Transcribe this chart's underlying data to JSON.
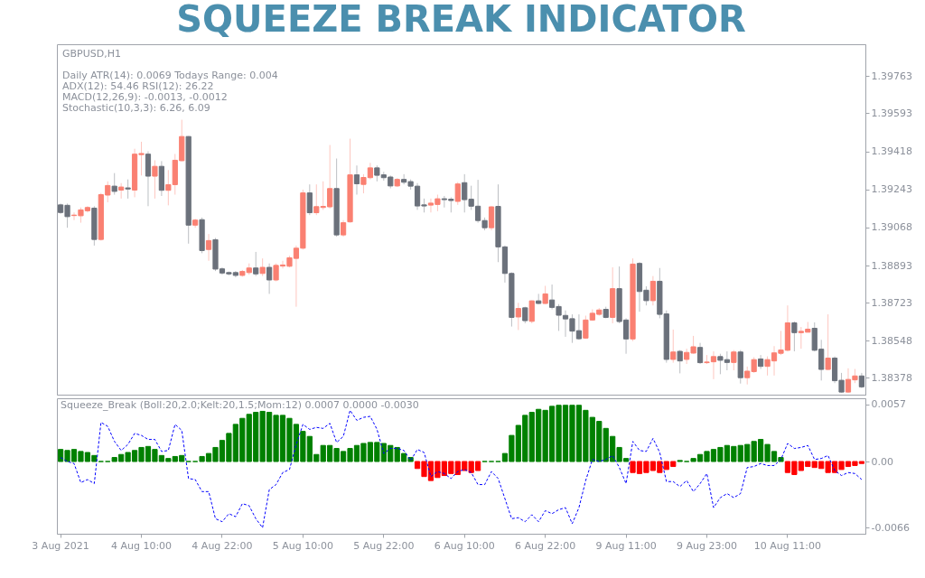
{
  "chart_data": [
    {
      "type": "candlestick",
      "title": "SQUEEZE BREAK INDICATOR",
      "categories": [
        null,
        null,
        null,
        null,
        null,
        null,
        null,
        null,
        null,
        null,
        null,
        null,
        null,
        null,
        null,
        null,
        null,
        null,
        null,
        null,
        null,
        null,
        null,
        null,
        null,
        null,
        null,
        null,
        null,
        null,
        null,
        null,
        null,
        null,
        null,
        null,
        null,
        null,
        null,
        null,
        null,
        null,
        null,
        null,
        null,
        null,
        null,
        null,
        null,
        null,
        null,
        null,
        null,
        null,
        null,
        null,
        null,
        null,
        null,
        null,
        null,
        null,
        null,
        null,
        null,
        null,
        null,
        null,
        null,
        null,
        null,
        null,
        null,
        null,
        null,
        null,
        null,
        null,
        null,
        null,
        null,
        null,
        null,
        null,
        null,
        null,
        null,
        null,
        null,
        null,
        null,
        null,
        null,
        null,
        null,
        null,
        null,
        null,
        null,
        null,
        null,
        null,
        null,
        null,
        null,
        null,
        null,
        null,
        null,
        null,
        null,
        null,
        null,
        null,
        null,
        null,
        null,
        null,
        null,
        null
      ],
      "ohlc": [
        [
          1.39172,
          1.39178,
          1.39131,
          1.39137
        ],
        [
          1.3917,
          1.39178,
          1.39067,
          1.39118
        ],
        [
          1.39123,
          1.39137,
          1.39102,
          1.39125
        ],
        [
          1.39122,
          1.3916,
          1.3909,
          1.39149
        ],
        [
          1.39145,
          1.39166,
          1.39137,
          1.3916
        ],
        [
          1.39157,
          1.39166,
          1.38985,
          1.39013
        ],
        [
          1.39013,
          1.39227,
          1.39008,
          1.39219
        ],
        [
          1.39217,
          1.3928,
          1.39184,
          1.39261
        ],
        [
          1.39258,
          1.39318,
          1.39219,
          1.39234
        ],
        [
          1.3924,
          1.39272,
          1.39201,
          1.39254
        ],
        [
          1.3925,
          1.39289,
          1.39201,
          1.39245
        ],
        [
          1.3924,
          1.3943,
          1.39207,
          1.39405
        ],
        [
          1.39403,
          1.39462,
          1.39307,
          1.39408
        ],
        [
          1.39405,
          1.39418,
          1.39166,
          1.39304
        ],
        [
          1.39304,
          1.39377,
          1.39201,
          1.39349
        ],
        [
          1.39349,
          1.39373,
          1.39213,
          1.39239
        ],
        [
          1.39239,
          1.39332,
          1.3917,
          1.39265
        ],
        [
          1.39265,
          1.39406,
          1.39219,
          1.39377
        ],
        [
          1.39375,
          1.39563,
          1.39372,
          1.39486
        ],
        [
          1.39486,
          1.39488,
          1.38994,
          1.39079
        ],
        [
          1.39079,
          1.39108,
          1.39067,
          1.39102
        ],
        [
          1.39104,
          1.39114,
          1.3895,
          1.38962
        ],
        [
          1.38967,
          1.39038,
          1.38915,
          1.39008
        ],
        [
          1.39012,
          1.3902,
          1.38868,
          1.38877
        ],
        [
          1.38878,
          1.38885,
          1.38851,
          1.38859
        ],
        [
          1.38861,
          1.38866,
          1.38848,
          1.38855
        ],
        [
          1.38861,
          1.38868,
          1.38839,
          1.38848
        ],
        [
          1.38848,
          1.38873,
          1.38842,
          1.38866
        ],
        [
          1.38861,
          1.38903,
          1.38851,
          1.38882
        ],
        [
          1.38882,
          1.38956,
          1.38845,
          1.38855
        ],
        [
          1.38857,
          1.38926,
          1.38845,
          1.38885
        ],
        [
          1.38885,
          1.38903,
          1.38763,
          1.38827
        ],
        [
          1.38827,
          1.38903,
          1.38821,
          1.38894
        ],
        [
          1.38891,
          1.38915,
          1.3888,
          1.38896
        ],
        [
          1.3889,
          1.38938,
          1.38885,
          1.38929
        ],
        [
          1.38926,
          1.38985,
          1.38704,
          1.38973
        ],
        [
          1.38973,
          1.39242,
          1.38967,
          1.39227
        ],
        [
          1.39227,
          1.39266,
          1.39125,
          1.39136
        ],
        [
          1.39136,
          1.39266,
          1.39125,
          1.39164
        ],
        [
          1.3916,
          1.3928,
          1.39149,
          1.39165
        ],
        [
          1.39163,
          1.39447,
          1.39155,
          1.39247
        ],
        [
          1.39247,
          1.39385,
          1.39026,
          1.39034
        ],
        [
          1.39034,
          1.39102,
          1.39026,
          1.3909
        ],
        [
          1.39094,
          1.39476,
          1.3909,
          1.3931
        ],
        [
          1.3931,
          1.39353,
          1.39219,
          1.39269
        ],
        [
          1.39266,
          1.39313,
          1.39225,
          1.39298
        ],
        [
          1.39297,
          1.39365,
          1.39289,
          1.39342
        ],
        [
          1.39342,
          1.39353,
          1.3928,
          1.39308
        ],
        [
          1.3931,
          1.39324,
          1.39283,
          1.39297
        ],
        [
          1.393,
          1.39307,
          1.39248,
          1.39259
        ],
        [
          1.39259,
          1.39295,
          1.39254,
          1.39289
        ],
        [
          1.39289,
          1.39313,
          1.39266,
          1.39276
        ],
        [
          1.39279,
          1.39289,
          1.39242,
          1.39258
        ],
        [
          1.39258,
          1.39272,
          1.39149,
          1.39167
        ],
        [
          1.39172,
          1.39201,
          1.39137,
          1.39167
        ],
        [
          1.39171,
          1.39201,
          1.39137,
          1.3918
        ],
        [
          1.39174,
          1.39219,
          1.39143,
          1.392
        ],
        [
          1.392,
          1.39213,
          1.3916,
          1.39196
        ],
        [
          1.39198,
          1.39207,
          1.39137,
          1.39192
        ],
        [
          1.39188,
          1.39277,
          1.39172,
          1.39268
        ],
        [
          1.39274,
          1.39313,
          1.39137,
          1.39196
        ],
        [
          1.39198,
          1.3926,
          1.39149,
          1.39166
        ],
        [
          1.39166,
          1.39287,
          1.3909,
          1.391
        ],
        [
          1.391,
          1.39114,
          1.39055,
          1.39067
        ],
        [
          1.39067,
          1.39166,
          1.39055,
          1.39163
        ],
        [
          1.39165,
          1.39266,
          1.38909,
          1.38979
        ],
        [
          1.38979,
          1.38985,
          1.38815,
          1.38857
        ],
        [
          1.38857,
          1.38862,
          1.38613,
          1.38655
        ],
        [
          1.38657,
          1.38722,
          1.38597,
          1.38696
        ],
        [
          1.38699,
          1.38704,
          1.38628,
          1.3864
        ],
        [
          1.38637,
          1.38733,
          1.38628,
          1.38731
        ],
        [
          1.38731,
          1.38763,
          1.38716,
          1.38719
        ],
        [
          1.38719,
          1.388,
          1.38716,
          1.38763
        ],
        [
          1.38735,
          1.38806,
          1.38692,
          1.38701
        ],
        [
          1.38705,
          1.38716,
          1.38593,
          1.38665
        ],
        [
          1.38664,
          1.38687,
          1.38566,
          1.38648
        ],
        [
          1.38649,
          1.38669,
          1.38538,
          1.38592
        ],
        [
          1.38594,
          1.38669,
          1.38552,
          1.38557
        ],
        [
          1.3856,
          1.38663,
          1.38556,
          1.38643
        ],
        [
          1.38643,
          1.38692,
          1.3864,
          1.38674
        ],
        [
          1.38669,
          1.38698,
          1.38663,
          1.38689
        ],
        [
          1.38692,
          1.38704,
          1.38651,
          1.38655
        ],
        [
          1.38655,
          1.38885,
          1.38628,
          1.38787
        ],
        [
          1.38787,
          1.38889,
          1.38628,
          1.38636
        ],
        [
          1.38643,
          1.38651,
          1.38488,
          1.38556
        ],
        [
          1.38556,
          1.38926,
          1.38546,
          1.389
        ],
        [
          1.38903,
          1.38909,
          1.38681,
          1.38774
        ],
        [
          1.3878,
          1.38798,
          1.3871,
          1.38732
        ],
        [
          1.38732,
          1.38845,
          1.3871,
          1.38821
        ],
        [
          1.38821,
          1.38882,
          1.38651,
          1.38669
        ],
        [
          1.38671,
          1.38687,
          1.38447,
          1.38462
        ],
        [
          1.38462,
          1.38599,
          1.38447,
          1.38496
        ],
        [
          1.38499,
          1.38505,
          1.38398,
          1.38455
        ],
        [
          1.38462,
          1.38511,
          1.38441,
          1.38494
        ],
        [
          1.38491,
          1.3857,
          1.38488,
          1.3852
        ],
        [
          1.38517,
          1.38538,
          1.38441,
          1.38447
        ],
        [
          1.38447,
          1.38482,
          1.38441,
          1.3845
        ],
        [
          1.38451,
          1.38499,
          1.38371,
          1.38475
        ],
        [
          1.38475,
          1.38488,
          1.38394,
          1.38458
        ],
        [
          1.38461,
          1.38499,
          1.38412,
          1.38448
        ],
        [
          1.38448,
          1.38505,
          1.38412,
          1.38496
        ],
        [
          1.38496,
          1.38505,
          1.38351,
          1.38378
        ],
        [
          1.38378,
          1.38429,
          1.38347,
          1.38408
        ],
        [
          1.38406,
          1.38472,
          1.384,
          1.38461
        ],
        [
          1.38464,
          1.38482,
          1.38418,
          1.3843
        ],
        [
          1.3843,
          1.38476,
          1.38388,
          1.38461
        ],
        [
          1.38455,
          1.38523,
          1.38388,
          1.38492
        ],
        [
          1.3849,
          1.38593,
          1.38482,
          1.38505
        ],
        [
          1.38504,
          1.3871,
          1.38499,
          1.3863
        ],
        [
          1.3863,
          1.38636,
          1.38499,
          1.38585
        ],
        [
          1.38585,
          1.38611,
          1.38511,
          1.38591
        ],
        [
          1.38587,
          1.38634,
          1.38587,
          1.38601
        ],
        [
          1.38605,
          1.38632,
          1.38499,
          1.38504
        ],
        [
          1.38509,
          1.38552,
          1.38365,
          1.38416
        ],
        [
          1.38416,
          1.38669,
          1.38412,
          1.38468
        ],
        [
          1.38468,
          1.38476,
          1.38353,
          1.38364
        ],
        [
          1.38366,
          1.384,
          1.38309,
          1.38312
        ],
        [
          1.38312,
          1.38421,
          1.38309,
          1.3837
        ],
        [
          1.38368,
          1.38418,
          1.38353,
          1.38386
        ],
        [
          1.38386,
          1.384,
          1.3833,
          1.38336
        ]
      ],
      "colors": [
        "#6b717b",
        "#6b717b",
        "#fa8072",
        "#fa8072",
        "#fa8072",
        "#6b717b",
        "#fa8072",
        "#fa8072",
        "#6b717b",
        "#fa8072",
        "#6b717b",
        "#fa8072",
        "#fa8072",
        "#6b717b",
        "#fa8072",
        "#6b717b",
        "#fa8072",
        "#fa8072",
        "#fa8072",
        "#6b717b",
        "#fa8072",
        "#6b717b",
        "#fa8072",
        "#6b717b",
        "#6b717b",
        "#6b717b",
        "#6b717b",
        "#fa8072",
        "#fa8072",
        "#6b717b",
        "#fa8072",
        "#6b717b",
        "#fa8072",
        "#fa8072",
        "#fa8072",
        "#fa8072",
        "#fa8072",
        "#6b717b",
        "#fa8072",
        "#fa8072",
        "#fa8072",
        "#6b717b",
        "#fa8072",
        "#fa8072",
        "#6b717b",
        "#fa8072",
        "#fa8072",
        "#6b717b",
        "#6b717b",
        "#6b717b",
        "#fa8072",
        "#6b717b",
        "#6b717b",
        "#6b717b",
        "#6b717b",
        "#fa8072",
        "#fa8072",
        "#6b717b",
        "#6b717b",
        "#fa8072",
        "#6b717b",
        "#6b717b",
        "#6b717b",
        "#6b717b",
        "#fa8072",
        "#6b717b",
        "#6b717b",
        "#6b717b",
        "#fa8072",
        "#6b717b",
        "#fa8072",
        "#6b717b",
        "#fa8072",
        "#6b717b",
        "#6b717b",
        "#6b717b",
        "#6b717b",
        "#6b717b",
        "#fa8072",
        "#fa8072",
        "#fa8072",
        "#6b717b",
        "#fa8072",
        "#6b717b",
        "#6b717b",
        "#fa8072",
        "#6b717b",
        "#6b717b",
        "#fa8072",
        "#6b717b",
        "#6b717b",
        "#fa8072",
        "#6b717b",
        "#fa8072",
        "#fa8072",
        "#6b717b",
        "#fa8072",
        "#fa8072",
        "#6b717b",
        "#6b717b",
        "#fa8072",
        "#6b717b",
        "#fa8072",
        "#fa8072",
        "#6b717b",
        "#fa8072",
        "#fa8072",
        "#fa8072",
        "#fa8072",
        "#6b717b",
        "#fa8072",
        "#fa8072",
        "#6b717b",
        "#6b717b",
        "#fa8072",
        "#6b717b",
        "#6b717b",
        "#fa8072",
        "#fa8072",
        "#6b717b"
      ],
      "ylim": [
        1.383,
        1.3991
      ],
      "yticks": [
        1.38378,
        1.38548,
        1.38723,
        1.38893,
        1.39068,
        1.39243,
        1.39418,
        1.39593,
        1.39763
      ],
      "tick_labels": "y",
      "annotations": [
        "GBPUSD,H1",
        "Daily ATR(14): 0.0069 Todays Range: 0.004",
        "ADX(12): 54.46 RSI(12): 26.22",
        "MACD(12,26,9): -0.0013, -0.0012",
        "Stochastic(10,3,3): 6.26, 6.09"
      ]
    },
    {
      "type": "bar",
      "title": "Squeeze_Break (Boll:20,2.0;Kelt:20,1.5;Mom:12) 0.0007 0.0000 -0.0030",
      "categories": [
        "3 Aug 2021",
        null,
        null,
        null,
        null,
        null,
        null,
        null,
        null,
        null,
        null,
        null,
        "4 Aug 10:00",
        null,
        null,
        null,
        null,
        null,
        null,
        null,
        null,
        null,
        null,
        null,
        "4 Aug 22:00",
        null,
        null,
        null,
        null,
        null,
        null,
        null,
        null,
        null,
        null,
        null,
        "5 Aug 10:00",
        null,
        null,
        null,
        null,
        null,
        null,
        null,
        null,
        null,
        null,
        null,
        "5 Aug 22:00",
        null,
        null,
        null,
        null,
        null,
        null,
        null,
        null,
        null,
        null,
        null,
        "6 Aug 10:00",
        null,
        null,
        null,
        null,
        null,
        null,
        null,
        null,
        null,
        null,
        null,
        "6 Aug 22:00",
        null,
        null,
        null,
        null,
        null,
        null,
        null,
        null,
        null,
        null,
        null,
        "9 Aug 11:00",
        null,
        null,
        null,
        null,
        null,
        null,
        null,
        null,
        null,
        null,
        null,
        "9 Aug 23:00",
        null,
        null,
        null,
        null,
        null,
        null,
        null,
        null,
        null,
        null,
        null,
        "10 Aug 11:00",
        null,
        null,
        null,
        null,
        null,
        null,
        null,
        null,
        null,
        null,
        null
      ],
      "series": [
        {
          "color": "#008000",
          "values": [
            0.0012,
            0.0011,
            0.0012,
            0.001,
            0.0009,
            0.0006,
            0,
            0,
            0.0004,
            0.0007,
            0.0009,
            0.0011,
            0.0014,
            0.0015,
            0.0012,
            0.0006,
            0.0003,
            0.0005,
            0.0006,
            0,
            0,
            0.0005,
            0.0008,
            0.0014,
            0.0021,
            0.0028,
            0.0037,
            0.0043,
            0.0047,
            0.0049,
            0.005,
            0.0049,
            0.0046,
            0.0046,
            0.0043,
            0.0037,
            0.003,
            0.0025,
            0.0007,
            0.0016,
            0.0016,
            0.0013,
            0.001,
            0.0013,
            0.0016,
            0.0018,
            0.0019,
            0.0019,
            0.0018,
            0.0016,
            0.0014,
            0.0008,
            0.0004,
            null,
            null,
            null,
            null,
            null,
            null,
            null,
            null,
            null,
            null,
            0,
            0,
            0,
            0.0008,
            0.0026,
            0.0036,
            0.0046,
            0.0049,
            0.0052,
            0.0051,
            0.0055,
            0.0056,
            0.0056,
            0.0056,
            0.0056,
            0.0051,
            0.0044,
            0.004,
            0.0033,
            0.0025,
            0.0014,
            0.0003,
            null,
            null,
            null,
            null,
            null,
            null,
            null,
            0.0001,
            0,
            0.0003,
            0.0007,
            0.001,
            0.0012,
            0.0014,
            0.0016,
            0.0015,
            0.0016,
            0.0017,
            0.002,
            0.0022,
            0.0017,
            0.001,
            0.0004,
            null,
            null,
            null,
            null,
            null,
            null,
            null,
            null,
            null,
            null,
            null,
            null
          ]
        },
        {
          "color": "#ff0000",
          "values": [
            null,
            null,
            null,
            null,
            null,
            null,
            null,
            null,
            null,
            null,
            null,
            null,
            null,
            null,
            null,
            null,
            null,
            null,
            null,
            null,
            null,
            null,
            null,
            null,
            null,
            null,
            null,
            null,
            null,
            null,
            null,
            null,
            null,
            null,
            null,
            null,
            null,
            null,
            null,
            null,
            null,
            null,
            null,
            null,
            null,
            null,
            null,
            null,
            null,
            null,
            null,
            null,
            null,
            -0.0007,
            -0.0015,
            -0.0019,
            -0.0016,
            -0.0014,
            -0.0012,
            -0.0013,
            -0.0009,
            -0.0011,
            -0.0009,
            null,
            null,
            null,
            null,
            null,
            null,
            null,
            null,
            null,
            null,
            null,
            null,
            null,
            null,
            null,
            null,
            null,
            null,
            null,
            null,
            null,
            null,
            -0.0011,
            -0.0012,
            -0.0011,
            -0.0009,
            -0.0011,
            -0.0008,
            -0.0005,
            null,
            null,
            null,
            null,
            null,
            null,
            null,
            null,
            null,
            null,
            null,
            null,
            null,
            null,
            null,
            null,
            -0.0011,
            -0.0013,
            -0.0009,
            -0.0005,
            -0.0006,
            -0.0007,
            -0.0011,
            -0.0011,
            -0.0008,
            -0.0005,
            -0.0004,
            -0.0002
          ]
        },
        {
          "type": "line",
          "color": "#0000ff",
          "line_style": "dashed",
          "values": [
            0.0004,
            0,
            -0.0002,
            -0.0021,
            -0.0018,
            -0.0022,
            0.0039,
            0.0035,
            0.002,
            0.0011,
            0.0017,
            0.0028,
            0.0026,
            0.0022,
            0.0022,
            0.001,
            0.0011,
            0.0037,
            0.0031,
            -0.0017,
            -0.0018,
            -0.003,
            -0.003,
            -0.0057,
            -0.006,
            -0.0052,
            -0.0055,
            -0.0042,
            -0.0044,
            -0.0057,
            -0.0066,
            -0.0028,
            -0.0023,
            -0.0011,
            -0.0008,
            0.0017,
            0.0037,
            0.0032,
            0.0034,
            0.0033,
            0.0038,
            0.0019,
            0.0025,
            0.0051,
            0.0041,
            0.0044,
            0.0045,
            0.0032,
            0.0008,
            0.0013,
            0.0013,
            0.0011,
            0.0001,
            0.0012,
            0.0009,
            -0.0015,
            -0.001,
            -0.0012,
            -0.0017,
            -0.001,
            -0.0008,
            -0.0011,
            -0.0023,
            -0.0023,
            -0.001,
            -0.0017,
            -0.0037,
            -0.0057,
            -0.0056,
            -0.006,
            -0.0053,
            -0.006,
            -0.0049,
            -0.0052,
            -0.0048,
            -0.0046,
            -0.0062,
            -0.0046,
            -0.0019,
            0.0002,
            0,
            0.0002,
            0.0006,
            -0.0006,
            -0.0022,
            0.002,
            0.0011,
            0.001,
            0.0023,
            0.0009,
            -0.002,
            -0.002,
            -0.0025,
            -0.0019,
            -0.003,
            -0.0022,
            -0.0012,
            -0.0046,
            -0.0036,
            -0.0032,
            -0.0036,
            -0.0032,
            -0.0006,
            -0.0005,
            -0.0002,
            -0.0004,
            -0.0004,
            0.0002,
            0.0018,
            0.0013,
            0.0014,
            0.0016,
            0.0002,
            0.0003,
            0.0006,
            -0.0009,
            -0.0014,
            -0.0011,
            -0.0012,
            -0.0018
          ]
        }
      ],
      "ylim": [
        -0.0072,
        0.0063
      ],
      "yticks": [
        0.0057,
        {
          "value": 0,
          "label": "0.00"
        },
        -0.0066
      ]
    }
  ]
}
